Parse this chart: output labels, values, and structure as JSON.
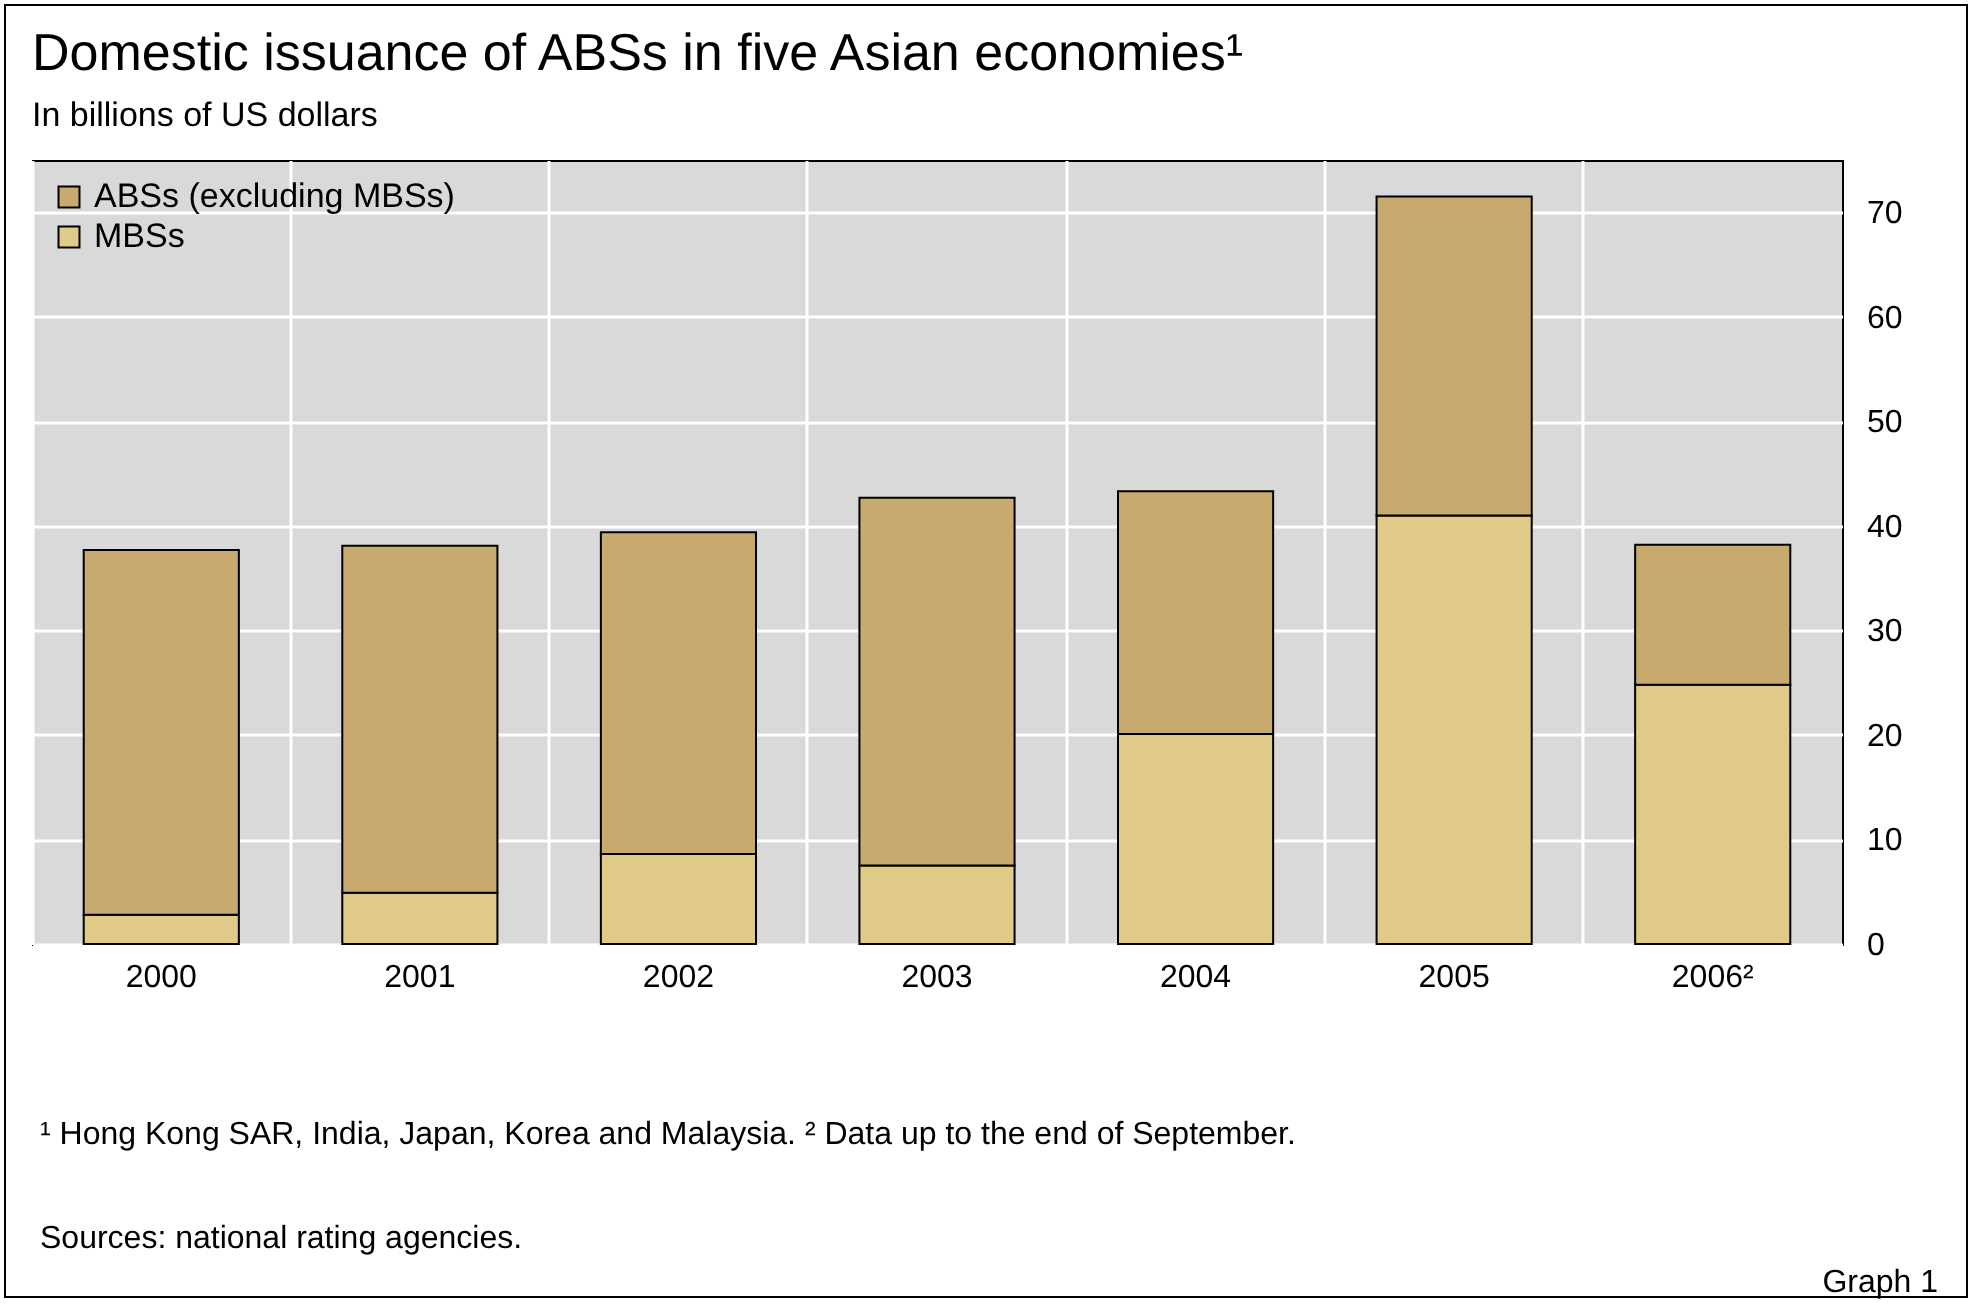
{
  "chart_data": {
    "type": "bar",
    "title": "Domestic issuance of ABSs in five Asian economies¹",
    "subtitle": "In billions of US dollars",
    "categories": [
      "2000",
      "2001",
      "2002",
      "2003",
      "2004",
      "2005",
      "2006²"
    ],
    "stacked": true,
    "grid": true,
    "legend": "top left",
    "ylim": [
      0,
      75
    ],
    "yticks": [
      0,
      10,
      20,
      30,
      40,
      50,
      60,
      70
    ],
    "series": [
      {
        "name": "MBSs",
        "color": "#e0ca88",
        "values": [
          2.8,
          4.9,
          8.6,
          7.5,
          20.1,
          41.0,
          24.8
        ]
      },
      {
        "name": "ABSs (excluding MBSs)",
        "color": "#c8a96e",
        "values": [
          34.9,
          33.2,
          30.8,
          35.2,
          23.2,
          30.5,
          13.4
        ]
      }
    ],
    "annotations": [
      "¹ Hong Kong SAR, India, Japan, Korea and Malaysia.   ² Data up to the end of September.",
      "Sources: national rating agencies.",
      "Graph 1"
    ]
  }
}
